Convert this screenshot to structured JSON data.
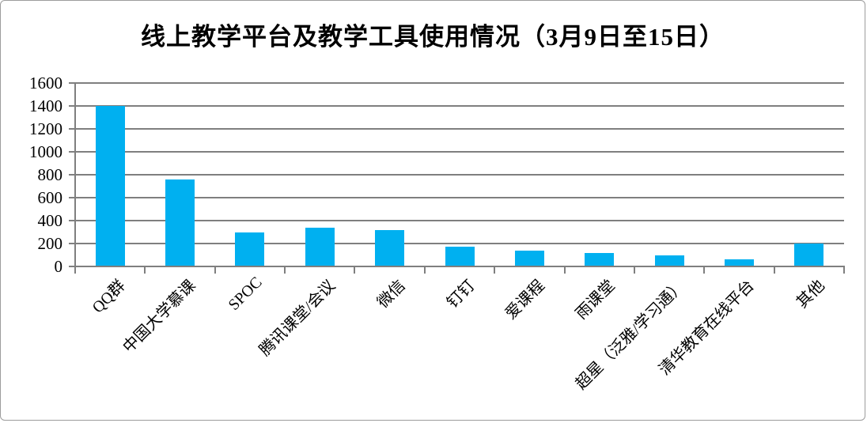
{
  "frame": {
    "background": "#ffffff",
    "border_color": "#9c9c9c"
  },
  "chart_data": {
    "type": "bar",
    "title": "线上教学平台及教学工具使用情况（3月9日至15日）",
    "categories": [
      "QQ群",
      "中国大学慕课",
      "SPOC",
      "腾讯课堂/会议",
      "微信",
      "钉钉",
      "爱课程",
      "雨课堂",
      "超星（泛雅/学习通）",
      "清华教育在线平台",
      "其他"
    ],
    "values": [
      1400,
      760,
      300,
      340,
      320,
      170,
      140,
      120,
      100,
      65,
      200
    ],
    "xlabel": "",
    "ylabel": "",
    "ylim": [
      0,
      1600
    ],
    "yticks": [
      0,
      200,
      400,
      600,
      800,
      1000,
      1200,
      1400,
      1600
    ],
    "grid": true,
    "legend_position": "none",
    "x_label_rotation_deg": 45,
    "bar_color": "#00b0f0",
    "grid_color": "#7f7f7f",
    "axis_color": "#7f7f7f",
    "text_color": "#000000"
  }
}
